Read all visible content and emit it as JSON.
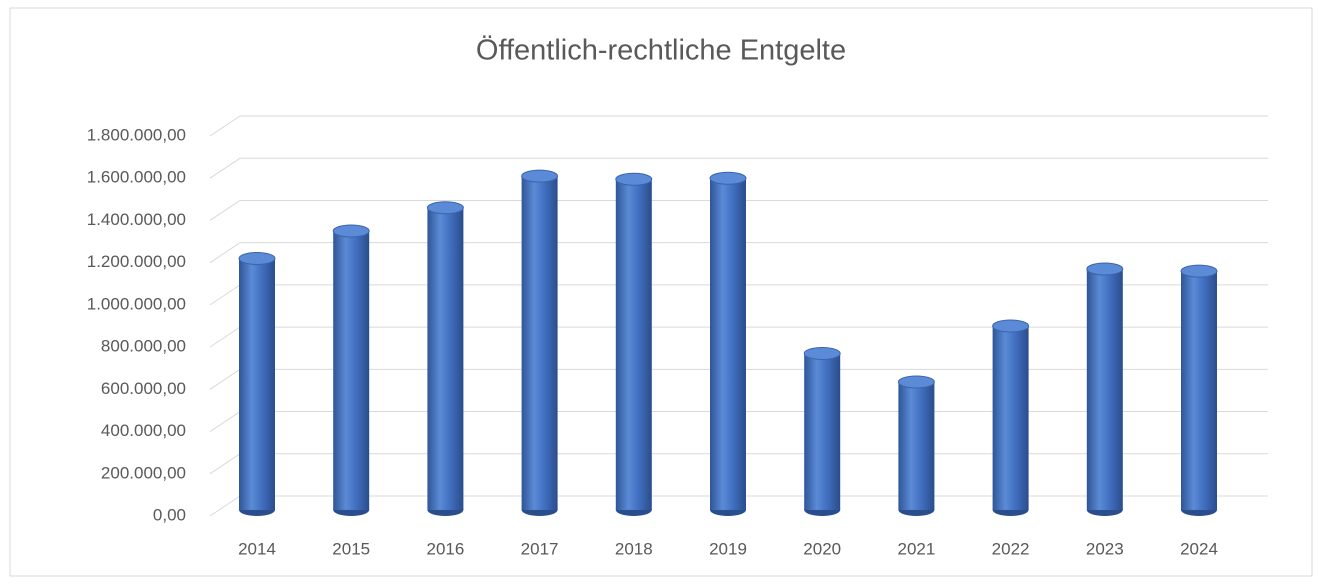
{
  "chart_data": {
    "type": "bar",
    "title": "Öffentlich-rechtliche Entgelte",
    "categories": [
      "2014",
      "2015",
      "2016",
      "2017",
      "2018",
      "2019",
      "2020",
      "2021",
      "2022",
      "2023",
      "2024"
    ],
    "values": [
      1220000,
      1350000,
      1460000,
      1610000,
      1595000,
      1600000,
      770000,
      635000,
      900000,
      1170000,
      1160000
    ],
    "color": "#4472c4",
    "ylim": [
      0,
      1800000
    ],
    "yticks": [
      {
        "value": 0,
        "label": "0,00"
      },
      {
        "value": 200000,
        "label": "200.000,00"
      },
      {
        "value": 400000,
        "label": "400.000,00"
      },
      {
        "value": 600000,
        "label": "600.000,00"
      },
      {
        "value": 800000,
        "label": "800.000,00"
      },
      {
        "value": 1000000,
        "label": "1.000.000,00"
      },
      {
        "value": 1200000,
        "label": "1.200.000,00"
      },
      {
        "value": 1400000,
        "label": "1.400.000,00"
      },
      {
        "value": 1600000,
        "label": "1.600.000,00"
      },
      {
        "value": 1800000,
        "label": "1.800.000,00"
      }
    ],
    "grid": true
  }
}
